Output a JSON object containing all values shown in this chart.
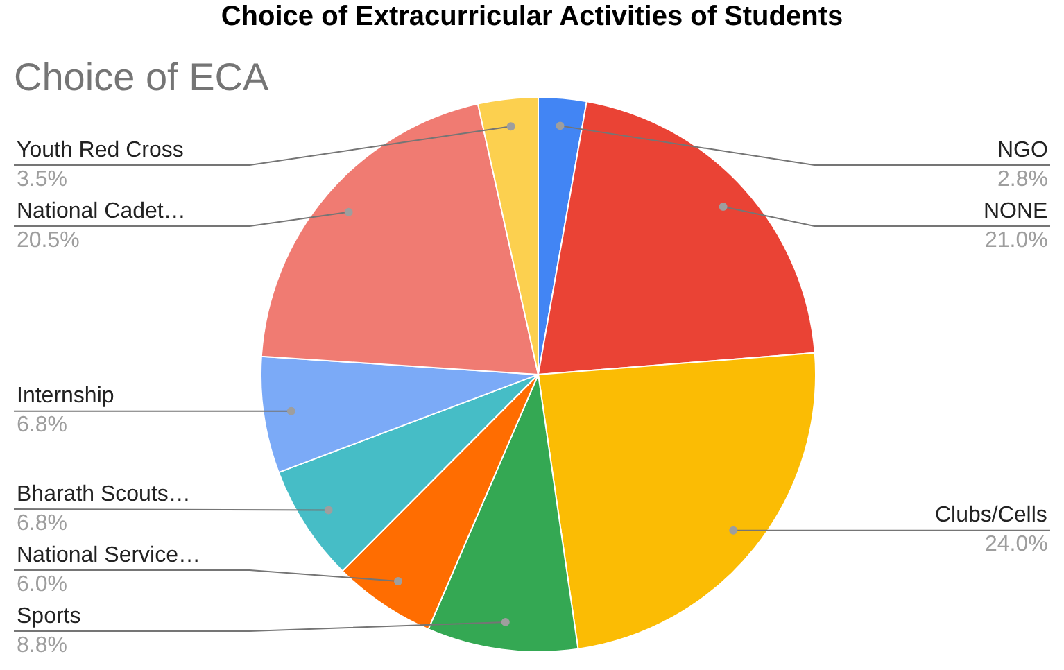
{
  "chart_data": {
    "type": "pie",
    "title": "Choice of Extracurricular Activities of Students",
    "subtitle": "Choice of ECA",
    "categories": [
      "NGO",
      "NONE",
      "Clubs/Cells",
      "Sports",
      "National Service…",
      "Bharath Scouts…",
      "Internship",
      "National Cadet…",
      "Youth Red Cross"
    ],
    "values": [
      2.8,
      21.0,
      24.0,
      8.8,
      6.0,
      6.8,
      6.8,
      20.5,
      3.5
    ],
    "value_labels": [
      "2.8%",
      "21.0%",
      "24.0%",
      "8.8%",
      "6.0%",
      "6.8%",
      "6.8%",
      "20.5%",
      "3.5%"
    ],
    "colors": [
      "#4285f4",
      "#ea4335",
      "#fbbc04",
      "#34a853",
      "#ff6d01",
      "#46bdc6",
      "#7baaf7",
      "#f07b72",
      "#fcd04f"
    ],
    "legend": false
  }
}
